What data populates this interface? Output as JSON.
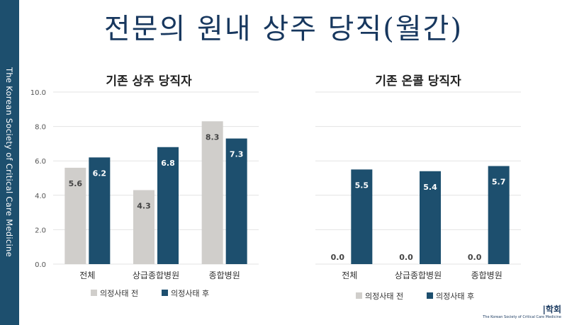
{
  "sidebar_text": "The Korean Society of Critical Care Medicine",
  "slide_title": "전문의 원내 상주 당직(월간)",
  "colors": {
    "before": "#d0cecb",
    "after": "#1d4f6e",
    "sidebar": "#1d4f6e",
    "title": "#17375e"
  },
  "chart_data": [
    {
      "type": "bar",
      "title": "기존 상주 당직자",
      "categories": [
        "전체",
        "상급종합병원",
        "종합병원"
      ],
      "series": [
        {
          "name": "의정사태 전",
          "values": [
            5.6,
            4.3,
            8.3
          ]
        },
        {
          "name": "의정사태 후",
          "values": [
            6.2,
            6.8,
            7.3
          ]
        }
      ],
      "ylim": [
        0,
        10
      ],
      "yticks": [
        "0.0",
        "2.0",
        "4.0",
        "6.0",
        "8.0",
        "10.0"
      ],
      "grid": true,
      "legend_position": "bottom"
    },
    {
      "type": "bar",
      "title": "기존 온콜 당직자",
      "categories": [
        "전체",
        "상급종합병원",
        "종합병원"
      ],
      "series": [
        {
          "name": "의정사태 전",
          "values": [
            0.0,
            0.0,
            0.0
          ]
        },
        {
          "name": "의정사태 후",
          "values": [
            5.5,
            5.4,
            5.7
          ]
        }
      ],
      "ylim": [
        0,
        10
      ],
      "grid": true,
      "legend_position": "bottom"
    }
  ],
  "footer": {
    "logo_text": "|학회",
    "org_name": "The Korean Society of Critical Care Medicine"
  }
}
